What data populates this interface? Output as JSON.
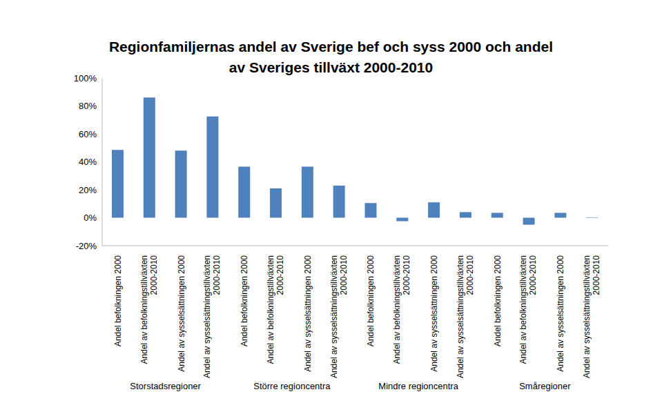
{
  "chart_data": {
    "type": "bar",
    "title": "Regionfamiljernas andel av Sverige bef och syss 2000 och andel av Sveriges tillväxt 2000-2010",
    "categories": [
      "Andel befolkningen 2000",
      "Andel av befolkningstillväxten 2000-2010",
      "Andel av sysselsättningen 2000",
      "Andel av sysselsättningstillväxten 2000-2010",
      "Andel befolkningen 2000",
      "Andel av befolkningstillväxten 2000-2010",
      "Andel av sysselsättningen 2000",
      "Andel av sysselsättningstillväxten 2000-2010",
      "Andel befolkningen 2000",
      "Andel av befolkningstillväxten 2000-2010",
      "Andel av sysselsättningen 2000",
      "Andel av sysselsättningstillväxten 2000-2010",
      "Andel befolkningen 2000",
      "Andel av befolkningstillväxten 2000-2010",
      "Andel av sysselsättningen 2000",
      "Andel av sysselsättningstillväxten 2000-2010"
    ],
    "x_groups": [
      "Storstadsregioner",
      "Större regioncentra",
      "Mindre regioncentra",
      "Småregioner"
    ],
    "values": [
      48.5,
      86,
      48,
      72.5,
      36.5,
      21,
      36.5,
      23,
      10.5,
      -2.5,
      11,
      4,
      3.5,
      -5,
      3.5,
      0.3
    ],
    "color": "#4f81bd",
    "ylim": [
      -20,
      100
    ],
    "yticks": [
      {
        "value": -20,
        "label": "-20%"
      },
      {
        "value": 0,
        "label": "0%"
      },
      {
        "value": 20,
        "label": "20%"
      },
      {
        "value": 40,
        "label": "40%"
      },
      {
        "value": 60,
        "label": "60%"
      },
      {
        "value": 80,
        "label": "80%"
      },
      {
        "value": 100,
        "label": "100%"
      }
    ],
    "grid": false
  }
}
